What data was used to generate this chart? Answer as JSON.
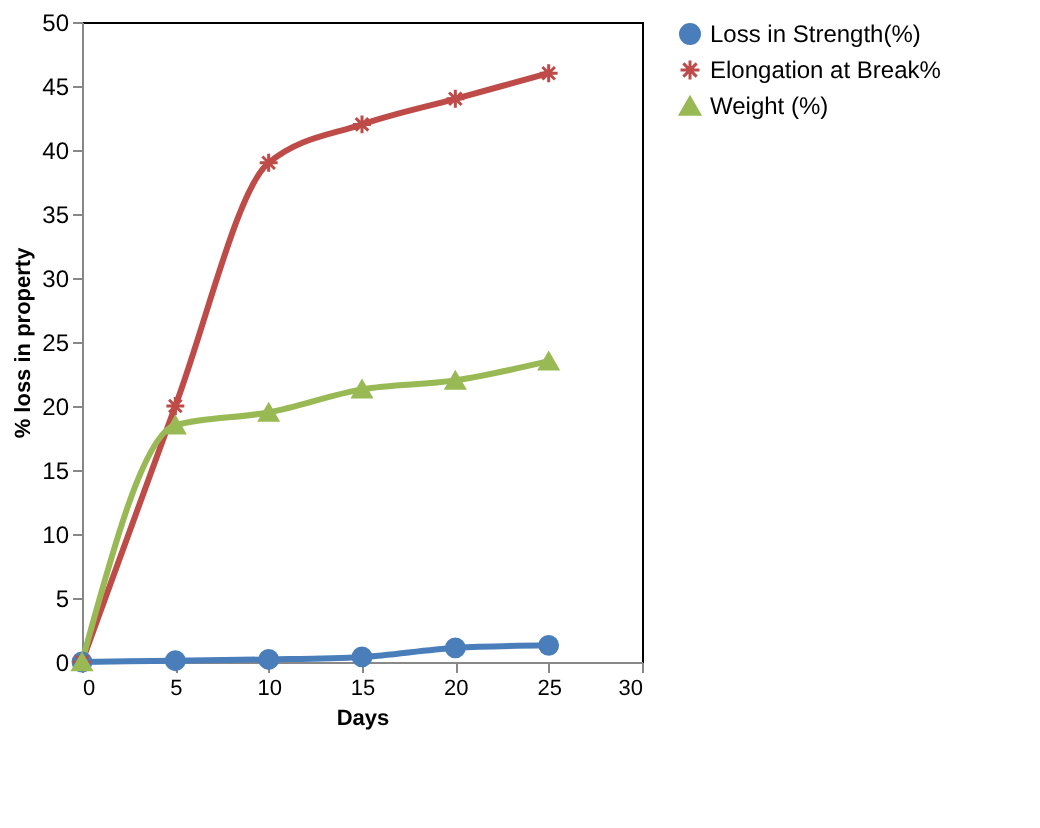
{
  "chart_data": {
    "type": "line",
    "xlabel": "Days",
    "ylabel": "% loss in property",
    "x": [
      0,
      5,
      10,
      15,
      20,
      25
    ],
    "xlim": [
      0,
      30
    ],
    "xticks": [
      0,
      5,
      10,
      15,
      20,
      25,
      30
    ],
    "ylim": [
      0,
      50
    ],
    "yticks": [
      0,
      5,
      10,
      15,
      20,
      25,
      30,
      35,
      40,
      45,
      50
    ],
    "grid": false,
    "legend": "right",
    "series": [
      {
        "name": "Loss in Strength(%)",
        "color": "#4a7ebb",
        "marker": "circle",
        "values": [
          0,
          0.1,
          0.2,
          0.4,
          1.1,
          1.3
        ]
      },
      {
        "name": "Elongation at Break%",
        "color": "#be4b48",
        "marker": "cross",
        "values": [
          0,
          20,
          39,
          42,
          44,
          46
        ]
      },
      {
        "name": "Weight (%)",
        "color": "#98b954",
        "marker": "triangle",
        "values": [
          0,
          18.5,
          19.5,
          21.3,
          22,
          23.5
        ]
      }
    ]
  }
}
